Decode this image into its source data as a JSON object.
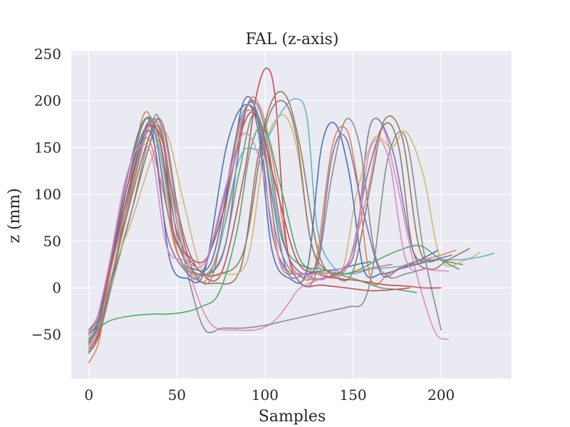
{
  "chart_data": {
    "type": "line",
    "title": "FAL (z-axis)",
    "xlabel": "Samples",
    "ylabel": "z (mm)",
    "xlim": [
      -10,
      240
    ],
    "ylim": [
      -97,
      253
    ],
    "xticks": [
      0,
      50,
      100,
      150,
      200
    ],
    "yticks": [
      -50,
      0,
      50,
      100,
      150,
      200,
      250
    ],
    "xtick_labels": [
      "0",
      "50",
      "100",
      "150",
      "200"
    ],
    "ytick_labels": [
      "−50",
      "0",
      "50",
      "100",
      "150",
      "200",
      "250"
    ],
    "grid": true,
    "legend": "none",
    "background": "#eaeaf2",
    "series_colors": [
      "#4c72b0",
      "#dd8452",
      "#55a868",
      "#c44e52",
      "#8172b3",
      "#937860",
      "#da8bc3",
      "#8c8c8c",
      "#ccb974",
      "#64b5cd"
    ],
    "series": [
      {
        "x": [
          0,
          5,
          12,
          22,
          32,
          40,
          50,
          60,
          70,
          80,
          88,
          96,
          104,
          112,
          122,
          132,
          142,
          152,
          160
        ],
        "values": [
          -55,
          -40,
          20,
          110,
          180,
          150,
          40,
          20,
          30,
          120,
          200,
          180,
          60,
          20,
          15,
          18,
          20,
          25,
          28
        ]
      },
      {
        "x": [
          0,
          5,
          12,
          22,
          31,
          38,
          48,
          58,
          68,
          80,
          90,
          98,
          106,
          114,
          124,
          136,
          146,
          154,
          162,
          172
        ],
        "values": [
          -60,
          -42,
          15,
          100,
          185,
          160,
          50,
          15,
          12,
          90,
          195,
          190,
          120,
          30,
          10,
          12,
          15,
          18,
          22,
          25
        ]
      },
      {
        "x": [
          0,
          5,
          12,
          22,
          33,
          41,
          50,
          62,
          75,
          85,
          93,
          100,
          110,
          125,
          140,
          150,
          158,
          166,
          176,
          186
        ],
        "values": [
          -50,
          -35,
          25,
          120,
          182,
          150,
          40,
          15,
          30,
          120,
          185,
          160,
          50,
          20,
          15,
          10,
          5,
          0,
          -2,
          -5
        ]
      },
      {
        "x": [
          0,
          6,
          14,
          24,
          33,
          40,
          50,
          62,
          75,
          88,
          95,
          101,
          106,
          112,
          120,
          132,
          146,
          160,
          172,
          182
        ],
        "values": [
          -65,
          -45,
          20,
          110,
          175,
          160,
          60,
          20,
          15,
          120,
          205,
          235,
          200,
          50,
          5,
          3,
          0,
          -3,
          -2,
          0
        ]
      },
      {
        "x": [
          0,
          5,
          12,
          20,
          30,
          37,
          45,
          56,
          68,
          78,
          86,
          92,
          100,
          112,
          128,
          140,
          146,
          152,
          160,
          172,
          184,
          194
        ],
        "values": [
          -58,
          -40,
          20,
          95,
          160,
          170,
          80,
          25,
          15,
          50,
          160,
          200,
          170,
          40,
          10,
          15,
          20,
          50,
          175,
          150,
          40,
          30
        ]
      },
      {
        "x": [
          0,
          6,
          14,
          24,
          34,
          40,
          50,
          60,
          72,
          86,
          96,
          104,
          112,
          120,
          130,
          140,
          150,
          160,
          168,
          178,
          188,
          200,
          212
        ],
        "values": [
          -48,
          -30,
          15,
          80,
          150,
          170,
          80,
          15,
          5,
          20,
          140,
          200,
          205,
          150,
          40,
          12,
          18,
          110,
          180,
          160,
          40,
          30,
          25
        ]
      },
      {
        "x": [
          0,
          6,
          14,
          24,
          34,
          42,
          52,
          60,
          70,
          84,
          94,
          102,
          108,
          114,
          120,
          132,
          146,
          158,
          166,
          174,
          184,
          196,
          204
        ],
        "values": [
          -62,
          -42,
          18,
          100,
          170,
          170,
          60,
          0,
          -40,
          -45,
          -45,
          -40,
          -30,
          -15,
          0,
          10,
          20,
          100,
          170,
          120,
          30,
          -45,
          -55
        ]
      },
      {
        "x": [
          0,
          6,
          14,
          24,
          34,
          40,
          50,
          58,
          66,
          76,
          88,
          100,
          112,
          124,
          136,
          148,
          156,
          162,
          170,
          180,
          190,
          200
        ],
        "values": [
          -70,
          -50,
          10,
          80,
          160,
          180,
          70,
          0,
          -45,
          -43,
          -43,
          -40,
          -35,
          -30,
          -25,
          -20,
          -15,
          30,
          140,
          160,
          40,
          -45
        ]
      },
      {
        "x": [
          0,
          6,
          14,
          24,
          36,
          44,
          54,
          64,
          76,
          90,
          100,
          110,
          118,
          126,
          134,
          144,
          152,
          162,
          172,
          180,
          190,
          200,
          214,
          222
        ],
        "values": [
          -52,
          -36,
          20,
          70,
          140,
          165,
          90,
          20,
          15,
          30,
          150,
          185,
          150,
          50,
          15,
          20,
          100,
          160,
          150,
          167,
          120,
          30,
          30,
          38
        ]
      },
      {
        "x": [
          0,
          5,
          12,
          22,
          32,
          40,
          50,
          60,
          72,
          86,
          98,
          110,
          118,
          124,
          130,
          140,
          150,
          160,
          172,
          184,
          196,
          210,
          222,
          230
        ],
        "values": [
          -55,
          -38,
          20,
          100,
          170,
          150,
          40,
          15,
          30,
          140,
          150,
          190,
          202,
          180,
          60,
          20,
          15,
          20,
          22,
          25,
          30,
          30,
          33,
          37
        ]
      },
      {
        "x": [
          0,
          5,
          12,
          22,
          32,
          38,
          46,
          56,
          66,
          78,
          88,
          96,
          104,
          114,
          124,
          132,
          140,
          148,
          156,
          166,
          176,
          188,
          198
        ],
        "values": [
          -45,
          -30,
          20,
          100,
          165,
          145,
          30,
          10,
          20,
          150,
          195,
          170,
          40,
          10,
          20,
          150,
          175,
          120,
          20,
          15,
          20,
          30,
          40
        ]
      },
      {
        "x": [
          0,
          6,
          12,
          22,
          32,
          40,
          50,
          60,
          72,
          84,
          92,
          100,
          108,
          118,
          128,
          138,
          146,
          152,
          160,
          170,
          180,
          190,
          200,
          208
        ],
        "values": [
          -80,
          -55,
          15,
          90,
          160,
          120,
          40,
          15,
          30,
          160,
          190,
          150,
          30,
          15,
          20,
          150,
          170,
          120,
          10,
          15,
          25,
          30,
          35,
          40
        ]
      },
      {
        "x": [
          0,
          5,
          12,
          24,
          36,
          44,
          54,
          64,
          74,
          84,
          92,
          100,
          110,
          120,
          132,
          144,
          154,
          164,
          176,
          188,
          200,
          210
        ],
        "values": [
          -60,
          -45,
          -35,
          -30,
          -28,
          -28,
          -26,
          -20,
          -5,
          60,
          150,
          170,
          100,
          30,
          20,
          15,
          20,
          30,
          40,
          45,
          30,
          20
        ]
      },
      {
        "x": [
          0,
          6,
          12,
          22,
          32,
          42,
          48,
          56,
          66,
          76,
          88,
          96,
          106,
          118,
          130,
          142,
          152,
          162,
          170,
          180,
          190,
          200
        ],
        "values": [
          -48,
          -35,
          22,
          110,
          170,
          155,
          60,
          35,
          30,
          80,
          175,
          180,
          110,
          30,
          15,
          10,
          8,
          5,
          3,
          2,
          0,
          0
        ]
      },
      {
        "x": [
          0,
          5,
          12,
          22,
          30,
          36,
          44,
          54,
          64,
          76,
          86,
          94,
          102,
          112,
          122,
          130,
          138,
          146,
          156,
          166,
          176,
          186,
          196,
          206
        ],
        "values": [
          -55,
          -40,
          25,
          120,
          175,
          168,
          60,
          20,
          15,
          90,
          180,
          190,
          120,
          20,
          15,
          30,
          140,
          160,
          80,
          15,
          20,
          25,
          30,
          35
        ]
      },
      {
        "x": [
          0,
          6,
          14,
          24,
          34,
          42,
          52,
          62,
          74,
          88,
          100,
          110,
          118,
          126,
          136,
          148,
          158,
          168,
          176,
          184,
          194,
          204,
          216
        ],
        "values": [
          -68,
          -48,
          18,
          95,
          160,
          175,
          70,
          20,
          15,
          40,
          170,
          200,
          160,
          50,
          18,
          30,
          120,
          175,
          150,
          40,
          20,
          30,
          42
        ]
      },
      {
        "x": [
          0,
          5,
          12,
          20,
          28,
          36,
          44,
          54,
          66,
          78,
          88,
          98,
          108,
          120,
          130,
          140,
          150,
          160,
          170,
          180,
          192,
          204
        ],
        "values": [
          -50,
          -30,
          30,
          110,
          150,
          140,
          45,
          30,
          28,
          110,
          165,
          130,
          30,
          15,
          15,
          18,
          40,
          150,
          140,
          30,
          20,
          18
        ]
      },
      {
        "x": [
          0,
          6,
          14,
          24,
          34,
          42,
          50,
          60,
          70,
          80,
          90,
          98,
          106,
          116,
          128,
          138,
          146,
          154,
          162,
          170,
          180,
          190
        ],
        "values": [
          -57,
          -40,
          20,
          100,
          175,
          160,
          55,
          15,
          12,
          110,
          195,
          170,
          60,
          15,
          10,
          120,
          180,
          150,
          40,
          12,
          15,
          20
        ]
      }
    ]
  }
}
